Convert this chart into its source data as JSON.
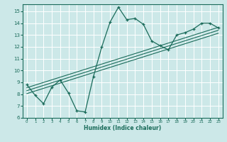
{
  "xlabel": "Humidex (Indice chaleur)",
  "ylabel": "",
  "bg_color": "#cce8e8",
  "line_color": "#1a6b5a",
  "grid_color": "#ffffff",
  "xlim": [
    -0.5,
    23.5
  ],
  "ylim": [
    6,
    15.6
  ],
  "xticks": [
    0,
    1,
    2,
    3,
    4,
    5,
    6,
    7,
    8,
    9,
    10,
    11,
    12,
    13,
    14,
    15,
    16,
    17,
    18,
    19,
    20,
    21,
    22,
    23
  ],
  "yticks": [
    6,
    7,
    8,
    9,
    10,
    11,
    12,
    13,
    14,
    15
  ],
  "line1_x": [
    0,
    1,
    2,
    3,
    4,
    5,
    6,
    7,
    8,
    9,
    10,
    11,
    12,
    13,
    14,
    15,
    16,
    17,
    18,
    19,
    20,
    21,
    22,
    23
  ],
  "line1_y": [
    8.8,
    7.9,
    7.2,
    8.6,
    9.2,
    8.1,
    6.6,
    6.5,
    9.5,
    12.0,
    14.1,
    15.35,
    14.3,
    14.4,
    13.9,
    12.5,
    12.1,
    11.75,
    13.0,
    13.2,
    13.5,
    14.0,
    14.0,
    13.6
  ],
  "regression_lines": [
    {
      "x": [
        0,
        23
      ],
      "y": [
        8.55,
        13.65
      ]
    },
    {
      "x": [
        0,
        23
      ],
      "y": [
        8.3,
        13.4
      ]
    },
    {
      "x": [
        0,
        23
      ],
      "y": [
        8.05,
        13.15
      ]
    }
  ]
}
